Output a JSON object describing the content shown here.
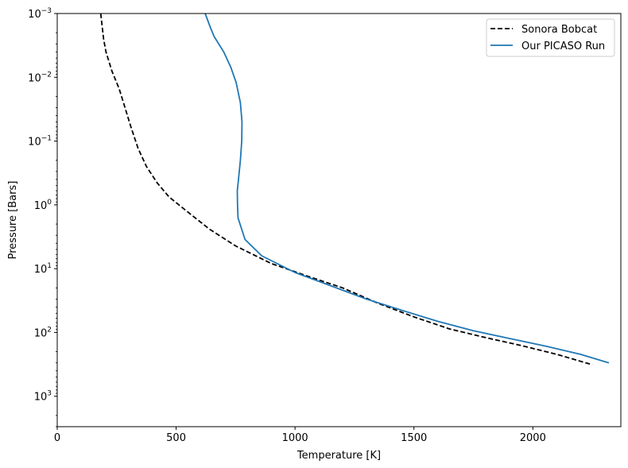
{
  "chart_data": {
    "type": "line",
    "title": "",
    "xlabel": "Temperature [K]",
    "ylabel": "Pressure [Bars]",
    "xlim": [
      0,
      2370
    ],
    "ylim": [
      3000,
      0.001
    ],
    "y_scale": "log",
    "y_inverted": true,
    "grid": false,
    "legend_position": "top-right",
    "x_ticks": [
      "0",
      "500",
      "1000",
      "1500",
      "2000"
    ],
    "x_tick_values": [
      0,
      500,
      1000,
      1500,
      2000
    ],
    "y_tick_exponents": [
      "-3",
      "-2",
      "-1",
      "0",
      "1",
      "2",
      "3"
    ],
    "y_tick_values": [
      0.001,
      0.01,
      0.1,
      1,
      10,
      100,
      1000
    ],
    "series": [
      {
        "name": "Sonora Bobcat",
        "color": "#000000",
        "dash": true,
        "points": [
          [
            183,
            0.001
          ],
          [
            195,
            0.0025
          ],
          [
            205,
            0.004
          ],
          [
            230,
            0.008
          ],
          [
            260,
            0.015
          ],
          [
            285,
            0.03
          ],
          [
            310,
            0.06
          ],
          [
            340,
            0.13
          ],
          [
            375,
            0.25
          ],
          [
            420,
            0.45
          ],
          [
            470,
            0.75
          ],
          [
            550,
            1.3
          ],
          [
            640,
            2.4
          ],
          [
            750,
            4.4
          ],
          [
            900,
            8.3
          ],
          [
            1050,
            13
          ],
          [
            1200,
            20
          ],
          [
            1350,
            35
          ],
          [
            1500,
            57
          ],
          [
            1650,
            88
          ],
          [
            1800,
            120
          ],
          [
            1950,
            160
          ],
          [
            2100,
            220
          ],
          [
            2250,
            320
          ]
        ]
      },
      {
        "name": "Our PICASO Run",
        "color": "#1f77b4",
        "dash": false,
        "points": [
          [
            622,
            0.001
          ],
          [
            645,
            0.0017
          ],
          [
            660,
            0.0023
          ],
          [
            700,
            0.004
          ],
          [
            730,
            0.007
          ],
          [
            752,
            0.012
          ],
          [
            770,
            0.025
          ],
          [
            777,
            0.05
          ],
          [
            776,
            0.1
          ],
          [
            770,
            0.2
          ],
          [
            762,
            0.4
          ],
          [
            757,
            0.6
          ],
          [
            758,
            1.0
          ],
          [
            760,
            1.6
          ],
          [
            790,
            3.5
          ],
          [
            860,
            6.3
          ],
          [
            1000,
            11.5
          ],
          [
            1150,
            18.5
          ],
          [
            1300,
            30
          ],
          [
            1450,
            45
          ],
          [
            1600,
            67
          ],
          [
            1750,
            94
          ],
          [
            1900,
            124
          ],
          [
            2050,
            163
          ],
          [
            2200,
            220
          ],
          [
            2320,
            300
          ]
        ]
      }
    ]
  }
}
